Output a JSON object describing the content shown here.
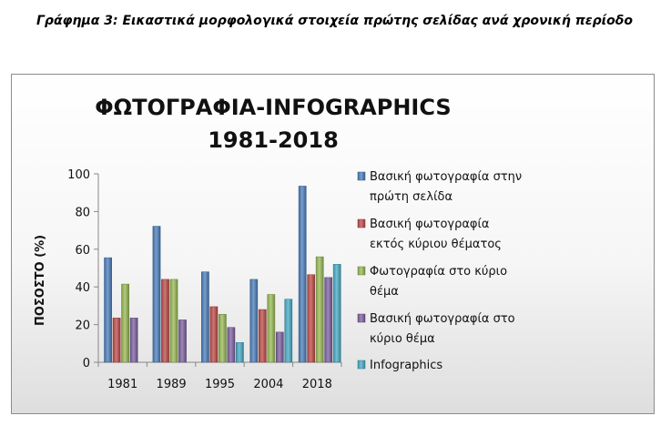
{
  "caption": "Γράφημα 3: Εικαστικά μορφολογικά στοιχεία πρώτης σελίδας ανά χρονική περίοδο",
  "chart_data": {
    "type": "bar",
    "title_lines": [
      "ΦΩΤΟΓΡΑΦΙΑ-INFOGRAPHICS",
      "1981-2018"
    ],
    "ylabel": "ΠΟΣΟΣΤΟ (%)",
    "xlabel": "",
    "ylim": [
      0,
      100
    ],
    "yticks": [
      0,
      20,
      40,
      60,
      80,
      100
    ],
    "grid": false,
    "legend_position": "right",
    "categories": [
      "1981",
      "1989",
      "1995",
      "2004",
      "2018"
    ],
    "series": [
      {
        "name": "Βασική φωτογραφία στην πρώτη σελίδα",
        "legend_lines": [
          "Βασική φωτογραφία στην",
          "πρώτη σελίδα"
        ],
        "color": "#4a7ebb",
        "values": [
          55.5,
          72.2,
          48,
          44,
          93.5
        ]
      },
      {
        "name": "Βασική φωτογραφία εκτός κύριου θέματος",
        "legend_lines": [
          "Βασική φωτογραφία",
          "εκτός κύριου θέματος"
        ],
        "color": "#be4b48",
        "values": [
          23.5,
          44,
          29.5,
          28,
          46.5
        ]
      },
      {
        "name": "Φωτογραφία στο κύριο θέμα",
        "legend_lines": [
          "Φωτογραφία στο κύριο",
          "θέμα"
        ],
        "color": "#98b954",
        "values": [
          41.5,
          44,
          25.5,
          36,
          56
        ]
      },
      {
        "name": "Βασική φωτογραφία στο κύριο θέμα",
        "legend_lines": [
          "Βασική φωτογραφία στο",
          "κύριο θέμα"
        ],
        "color": "#7d60a0",
        "values": [
          23.5,
          22.5,
          18.5,
          16,
          45
        ]
      },
      {
        "name": "Infographics",
        "legend_lines": [
          "Infographics"
        ],
        "color": "#46aac5",
        "values": [
          null,
          null,
          10.5,
          33.5,
          52
        ]
      }
    ]
  }
}
